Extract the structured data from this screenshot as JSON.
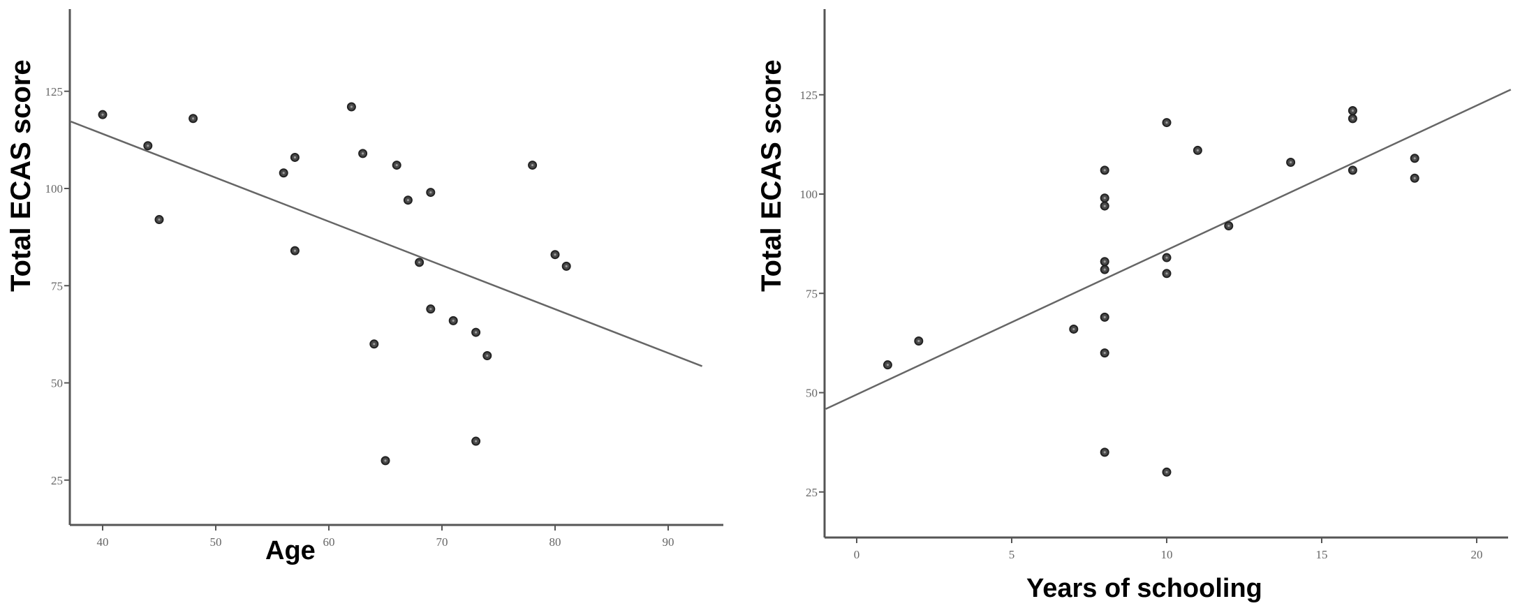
{
  "chart_data": [
    {
      "type": "scatter",
      "title": "",
      "xlabel": "Age",
      "ylabel": "Total ECAS score",
      "xlim": [
        37.2,
        93
      ],
      "ylim": [
        13,
        145
      ],
      "xticks": [
        40,
        50,
        60,
        70,
        80,
        90
      ],
      "yticks": [
        25,
        50,
        75,
        100,
        125
      ],
      "grid": false,
      "legend": null,
      "points": [
        {
          "x": 40,
          "y": 119
        },
        {
          "x": 44,
          "y": 111
        },
        {
          "x": 45,
          "y": 92
        },
        {
          "x": 48,
          "y": 118
        },
        {
          "x": 56,
          "y": 104
        },
        {
          "x": 57,
          "y": 108
        },
        {
          "x": 57,
          "y": 84
        },
        {
          "x": 62,
          "y": 121
        },
        {
          "x": 63,
          "y": 109
        },
        {
          "x": 64,
          "y": 60
        },
        {
          "x": 65,
          "y": 30
        },
        {
          "x": 66,
          "y": 106
        },
        {
          "x": 67,
          "y": 97
        },
        {
          "x": 68,
          "y": 81
        },
        {
          "x": 69,
          "y": 99
        },
        {
          "x": 69,
          "y": 69
        },
        {
          "x": 71,
          "y": 66
        },
        {
          "x": 73,
          "y": 63
        },
        {
          "x": 73,
          "y": 35
        },
        {
          "x": 74,
          "y": 57
        },
        {
          "x": 78,
          "y": 106
        },
        {
          "x": 80,
          "y": 83
        },
        {
          "x": 81,
          "y": 80
        }
      ],
      "fit_line": {
        "x0": 37.2,
        "y0": 117.2,
        "x1": 93,
        "y1": 54.3
      }
    },
    {
      "type": "scatter",
      "title": "",
      "xlabel": "Years of schooling",
      "ylabel": "Total ECAS score",
      "xlim": [
        -1,
        21.1
      ],
      "ylim": [
        13,
        145
      ],
      "xticks": [
        0,
        5,
        10,
        15,
        20
      ],
      "yticks": [
        25,
        50,
        75,
        100,
        125
      ],
      "grid": false,
      "legend": null,
      "points": [
        {
          "x": 1,
          "y": 57
        },
        {
          "x": 2,
          "y": 63
        },
        {
          "x": 7,
          "y": 66
        },
        {
          "x": 8,
          "y": 106
        },
        {
          "x": 8,
          "y": 99
        },
        {
          "x": 8,
          "y": 97
        },
        {
          "x": 8,
          "y": 83
        },
        {
          "x": 8,
          "y": 81
        },
        {
          "x": 8,
          "y": 69
        },
        {
          "x": 8,
          "y": 60
        },
        {
          "x": 8,
          "y": 35
        },
        {
          "x": 10,
          "y": 118
        },
        {
          "x": 10,
          "y": 84
        },
        {
          "x": 10,
          "y": 80
        },
        {
          "x": 10,
          "y": 30
        },
        {
          "x": 11,
          "y": 111
        },
        {
          "x": 12,
          "y": 92
        },
        {
          "x": 14,
          "y": 108
        },
        {
          "x": 16,
          "y": 121
        },
        {
          "x": 16,
          "y": 119
        },
        {
          "x": 16,
          "y": 106
        },
        {
          "x": 18,
          "y": 109
        },
        {
          "x": 18,
          "y": 104
        }
      ],
      "fit_line": {
        "x0": -1,
        "y0": 45.9,
        "x1": 21.1,
        "y1": 126.3
      }
    }
  ],
  "left": {
    "ylabel": "Total ECAS score",
    "xlabel": "Age",
    "xtick_labels": [
      "40",
      "50",
      "60",
      "70",
      "80",
      "90"
    ],
    "ytick_labels": [
      "125",
      "100",
      "75",
      "50",
      "25"
    ]
  },
  "right": {
    "ylabel": "Total ECAS score",
    "xlabel": "Years of schooling",
    "xtick_labels": [
      "0",
      "5",
      "10",
      "15",
      "20"
    ],
    "ytick_labels": [
      "125",
      "100",
      "75",
      "50",
      "25"
    ]
  },
  "colors": {
    "axis": "#555555",
    "point_fill": "#4a4a4a",
    "point_stroke": "#222222",
    "fit_line": "#666666",
    "tick_text": "#666666"
  }
}
